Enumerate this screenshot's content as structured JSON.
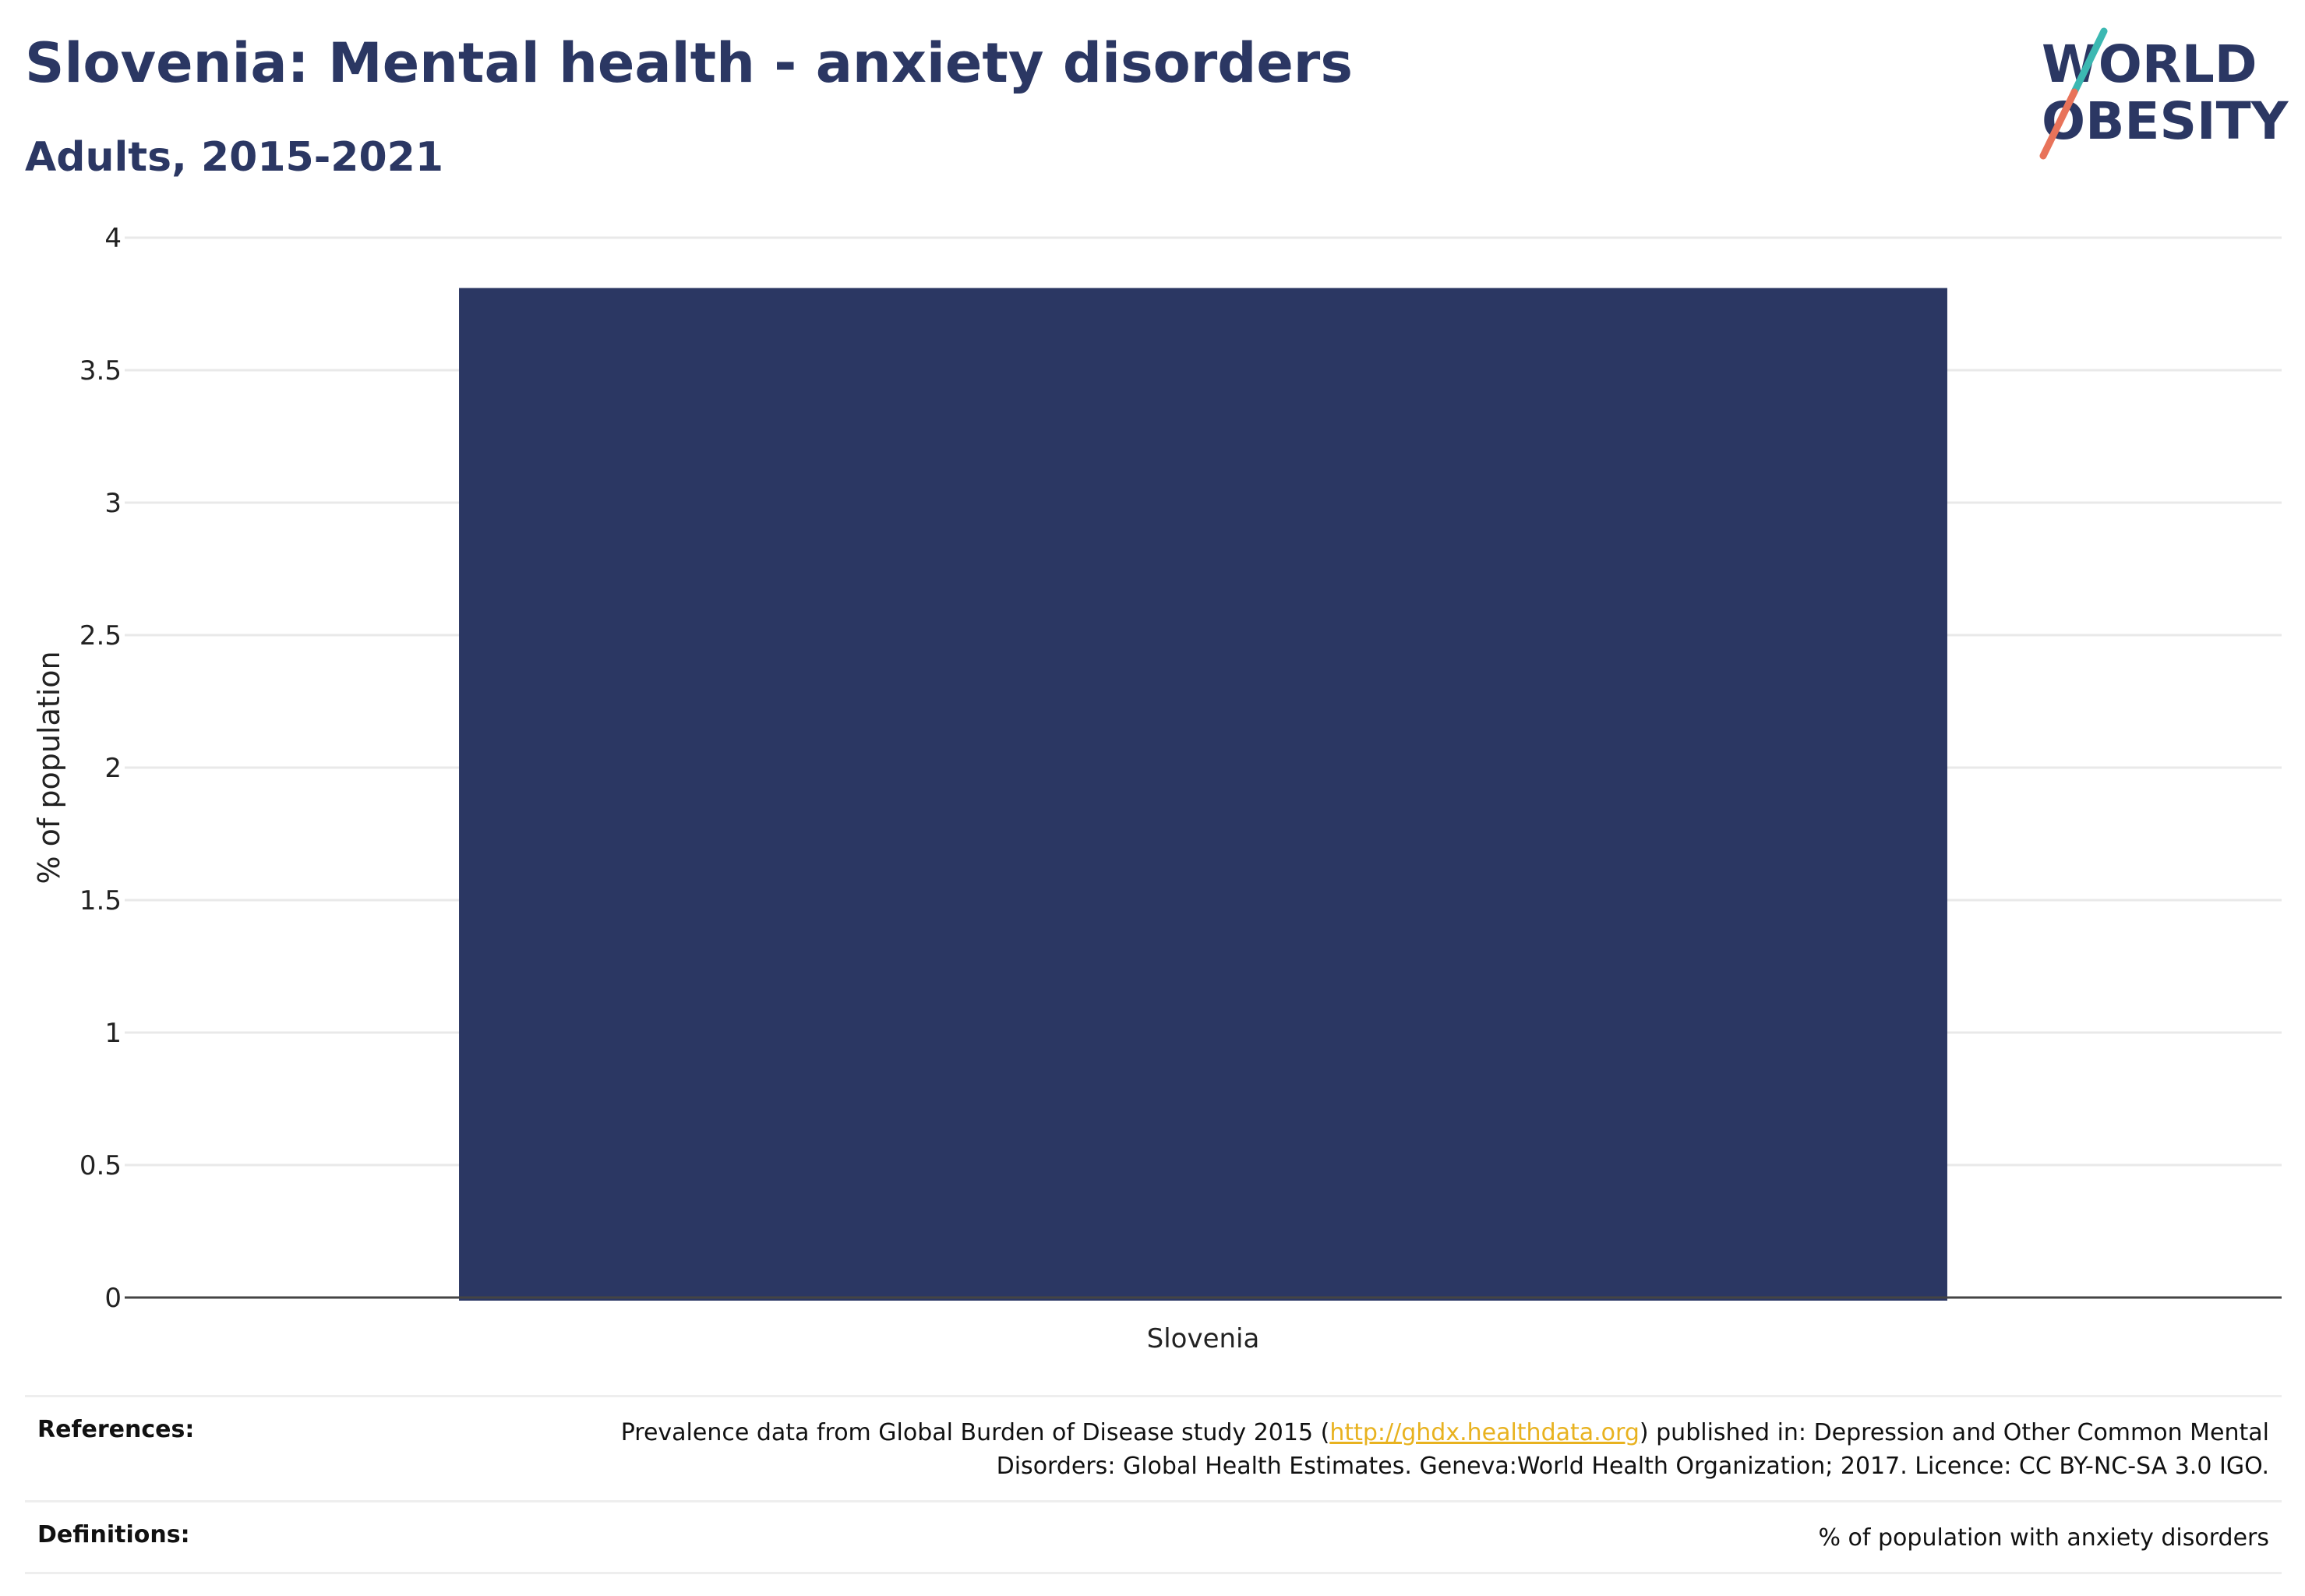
{
  "header": {
    "title": "Slovenia: Mental health - anxiety disorders",
    "subtitle": "Adults, 2015-2021"
  },
  "logo": {
    "line1": "WORLD",
    "line2": "OBESITY",
    "colors": {
      "text": "#2b3763",
      "slash_top": "#3cb8b2",
      "slash_bottom": "#e8735a"
    }
  },
  "chart_data": {
    "type": "bar",
    "categories": [
      "Slovenia"
    ],
    "values": [
      3.81
    ],
    "xlabel": "",
    "ylabel": "% of population",
    "ylim": [
      0,
      4
    ],
    "yticks": [
      0,
      0.5,
      1,
      1.5,
      2,
      2.5,
      3,
      3.5,
      4
    ],
    "ytick_labels": [
      "0",
      "0.5",
      "1",
      "1.5",
      "2",
      "2.5",
      "3",
      "3.5",
      "4"
    ],
    "grid": true,
    "legend": "none",
    "bar_color": "#2b3763"
  },
  "footer": {
    "references_label": "References:",
    "references_text_before": "Prevalence data from Global Burden of Disease study 2015 (",
    "references_link": "http://ghdx.healthdata.org",
    "references_text_after": ") published in: Depression and Other Common Mental Disorders: Global Health Estimates. Geneva:World Health Organization; 2017. Licence: CC BY-NC-SA 3.0 IGO.",
    "definitions_label": "Definitions:",
    "definitions_text": "% of population with anxiety disorders"
  }
}
